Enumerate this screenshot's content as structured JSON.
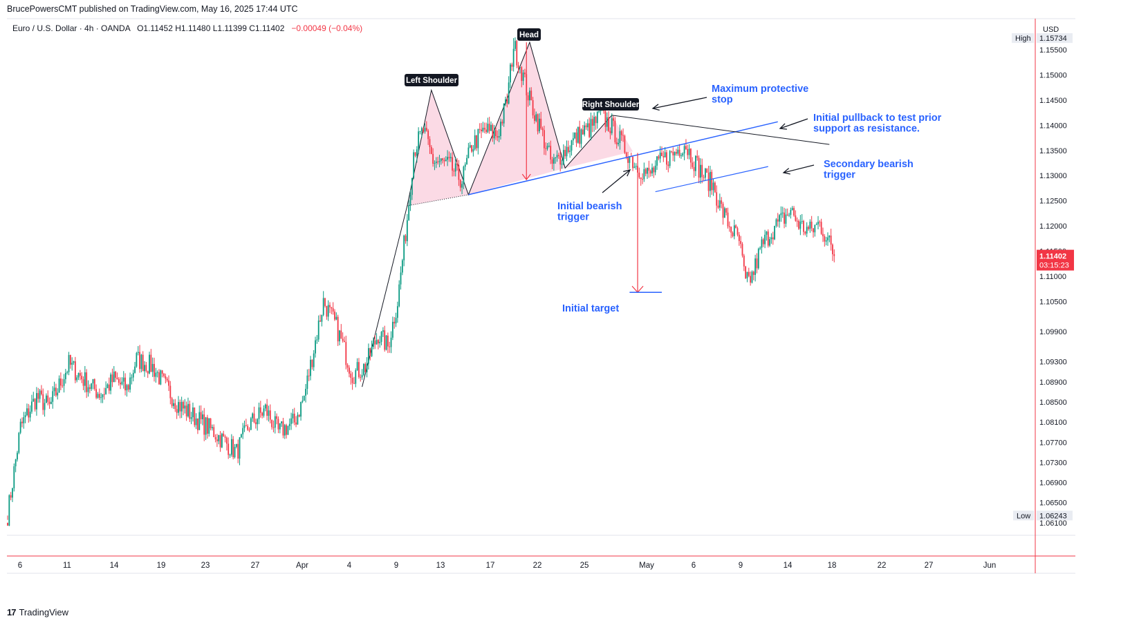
{
  "header": {
    "published_line": "BrucePowersCMT published on TradingView.com, May 16, 2025 17:44 UTC",
    "symbol_legend": "Euro / U.S. Dollar · 4h · OANDA",
    "ohlc": "O1.11452  H1.11480  L1.11399  C1.11402",
    "change": "−0.00049 (−0.04%)"
  },
  "price_axis": {
    "currency": "USD",
    "high_label": "High",
    "high_value": "1.15734",
    "low_label": "Low",
    "low_value": "1.06243",
    "last_price": "1.11402",
    "countdown": "03:15:23"
  },
  "footer": {
    "brand": "TradingView",
    "brand_mark": "17"
  },
  "colors": {
    "up": "#089981",
    "down": "#f23645",
    "annotation_blue": "#2962ff",
    "pattern_fill": "#f8bbd0",
    "target_arrow": "#f23645",
    "axis_line": "#e0e3eb"
  },
  "chart_data": {
    "type": "candlestick",
    "symbol": "EURUSD",
    "timeframe": "4h",
    "ylim": [
      1.0585,
      1.1612
    ],
    "y_ticks": [
      "1.15500",
      "1.15000",
      "1.14500",
      "1.14000",
      "1.13500",
      "1.13000",
      "1.12500",
      "1.12000",
      "1.11500",
      "1.11000",
      "1.10500",
      "1.09900",
      "1.09300",
      "1.08900",
      "1.08500",
      "1.08100",
      "1.07700",
      "1.07300",
      "1.06900",
      "1.06500",
      "1.06100"
    ],
    "x_ticks": [
      "6",
      "11",
      "14",
      "19",
      "23",
      "27",
      "Apr",
      "4",
      "9",
      "13",
      "17",
      "22",
      "25",
      "May",
      "6",
      "9",
      "14",
      "18",
      "22",
      "27",
      "Jun"
    ],
    "bars_per_day": 6,
    "path": [
      [
        0,
        1.0625
      ],
      [
        8,
        1.08
      ],
      [
        18,
        1.086
      ],
      [
        26,
        1.084
      ],
      [
        38,
        1.0925
      ],
      [
        50,
        1.0885
      ],
      [
        58,
        1.0865
      ],
      [
        66,
        1.0895
      ],
      [
        74,
        1.0875
      ],
      [
        80,
        1.0935
      ],
      [
        90,
        1.092
      ],
      [
        98,
        1.088
      ],
      [
        106,
        1.0845
      ],
      [
        116,
        1.082
      ],
      [
        128,
        1.079
      ],
      [
        142,
        1.075
      ],
      [
        150,
        1.0805
      ],
      [
        160,
        1.0835
      ],
      [
        168,
        1.079
      ],
      [
        178,
        1.081
      ],
      [
        184,
        1.086
      ],
      [
        190,
        1.0955
      ],
      [
        196,
        1.105
      ],
      [
        204,
        1.1
      ],
      [
        214,
        1.0905
      ],
      [
        222,
        1.092
      ],
      [
        230,
        1.0985
      ],
      [
        236,
        1.096
      ],
      [
        242,
        1.105
      ],
      [
        248,
        1.1215
      ],
      [
        252,
        1.135
      ],
      [
        258,
        1.139
      ],
      [
        264,
        1.133
      ],
      [
        274,
        1.132
      ],
      [
        282,
        1.129
      ],
      [
        288,
        1.136
      ],
      [
        296,
        1.139
      ],
      [
        304,
        1.138
      ],
      [
        310,
        1.145
      ],
      [
        314,
        1.156
      ],
      [
        318,
        1.152
      ],
      [
        324,
        1.145
      ],
      [
        330,
        1.14
      ],
      [
        338,
        1.132
      ],
      [
        346,
        1.135
      ],
      [
        354,
        1.138
      ],
      [
        362,
        1.1395
      ],
      [
        368,
        1.142
      ],
      [
        374,
        1.14
      ],
      [
        382,
        1.136
      ],
      [
        390,
        1.132
      ],
      [
        398,
        1.13
      ],
      [
        406,
        1.133
      ],
      [
        414,
        1.1345
      ],
      [
        420,
        1.1365
      ],
      [
        426,
        1.133
      ],
      [
        432,
        1.13
      ],
      [
        438,
        1.128
      ],
      [
        442,
        1.124
      ],
      [
        448,
        1.12
      ],
      [
        454,
        1.117
      ],
      [
        458,
        1.1085
      ],
      [
        462,
        1.11
      ],
      [
        468,
        1.116
      ],
      [
        474,
        1.119
      ],
      [
        480,
        1.121
      ],
      [
        486,
        1.123
      ],
      [
        492,
        1.12
      ],
      [
        498,
        1.119
      ],
      [
        504,
        1.1205
      ],
      [
        510,
        1.1165
      ],
      [
        513,
        1.114
      ]
    ],
    "annotations": {
      "labels": [
        "Head",
        "Left Shoulder",
        "Right Shoulder"
      ],
      "notes": [
        [
          "Maximum protective",
          "stop"
        ],
        [
          "Initial pullback to test prior",
          "support as resistance."
        ],
        [
          "Secondary bearish",
          "trigger"
        ],
        [
          "Initial bearish",
          "trigger"
        ],
        [
          "Initial target"
        ]
      ],
      "neckline": [
        [
          1.1262,
          1.1372
        ]
      ],
      "target_price": 1.1065,
      "measured_move_from": 1.156
    }
  }
}
